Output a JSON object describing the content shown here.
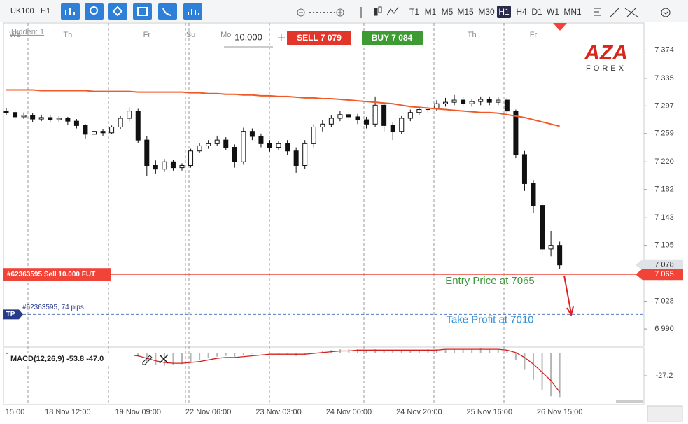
{
  "toolbar": {
    "symbol": "UK100",
    "timeframe": "H1",
    "periods": [
      "T1",
      "M1",
      "M5",
      "M15",
      "M30",
      "H1",
      "H4",
      "D1",
      "W1",
      "MN1"
    ],
    "active_period": 5
  },
  "order_panel": {
    "volume": "10.000",
    "sell": "SELL 7 079",
    "buy": "BUY 7 084"
  },
  "hidden": "Hidden: 1",
  "logo": {
    "brand": "AZA",
    "sub": "FOREX"
  },
  "chart_data": [
    {
      "type": "candlestick",
      "categories": [
        null,
        "15:00",
        null,
        null,
        null,
        null,
        null,
        "18 Nov 12:00",
        null,
        null,
        null,
        null,
        null,
        null,
        null,
        "19 Nov 09:00",
        null,
        null,
        null,
        null,
        null,
        null,
        null,
        "22 Nov 06:00",
        null,
        null,
        null,
        null,
        null,
        null,
        null,
        "23 Nov 03:00",
        null,
        null,
        null,
        null,
        null,
        null,
        null,
        "24 Nov 00:00",
        null,
        null,
        null,
        null,
        null,
        null,
        null,
        "24 Nov 20:00",
        null,
        null,
        null,
        null,
        null,
        null,
        null,
        "25 Nov 16:00",
        null,
        null,
        null,
        null,
        null,
        null,
        null,
        "26 Nov 15:00"
      ],
      "day_labels": [
        null,
        "We",
        null,
        null,
        null,
        null,
        null,
        "Th",
        null,
        null,
        null,
        null,
        null,
        null,
        null,
        null,
        "Fr",
        null,
        null,
        null,
        null,
        "Su",
        null,
        null,
        null,
        "Mo",
        null,
        null,
        null,
        null,
        null,
        null,
        null,
        null,
        null,
        null,
        null,
        null,
        null,
        null,
        null,
        null,
        null,
        null,
        null,
        null,
        null,
        null,
        null,
        null,
        null,
        null,
        null,
        "Th",
        null,
        null,
        null,
        null,
        null,
        null,
        "Fr",
        null,
        null,
        null
      ],
      "open": [
        7290,
        7288,
        7282,
        7284,
        7279,
        7281,
        7278,
        7280,
        7276,
        7270,
        7258,
        7262,
        7260,
        7268,
        7280,
        7290,
        7250,
        7215,
        7210,
        7220,
        7212,
        7215,
        7235,
        7242,
        7245,
        7250,
        7240,
        7220,
        7262,
        7255,
        7245,
        7240,
        7245,
        7235,
        7215,
        7245,
        7268,
        7272,
        7280,
        7285,
        7282,
        7278,
        7272,
        7298,
        7270,
        7262,
        7280,
        7288,
        7292,
        7294,
        7300,
        7302,
        7305,
        7300,
        7303,
        7306,
        7302,
        7305,
        7290,
        7230,
        7190,
        7160,
        7100,
        7105
      ],
      "high": [
        7294,
        7292,
        7288,
        7287,
        7285,
        7284,
        7283,
        7282,
        7279,
        7272,
        7266,
        7265,
        7270,
        7283,
        7295,
        7293,
        7255,
        7222,
        7224,
        7223,
        7218,
        7238,
        7246,
        7250,
        7256,
        7254,
        7244,
        7267,
        7266,
        7259,
        7250,
        7249,
        7250,
        7240,
        7250,
        7272,
        7278,
        7284,
        7290,
        7288,
        7286,
        7282,
        7310,
        7302,
        7274,
        7283,
        7292,
        7296,
        7298,
        7305,
        7308,
        7312,
        7309,
        7307,
        7310,
        7310,
        7309,
        7308,
        7292,
        7235,
        7195,
        7165,
        7125,
        7110
      ],
      "low": [
        7284,
        7278,
        7279,
        7275,
        7276,
        7274,
        7275,
        7271,
        7266,
        7252,
        7255,
        7256,
        7258,
        7265,
        7276,
        7246,
        7200,
        7204,
        7206,
        7208,
        7208,
        7212,
        7232,
        7238,
        7242,
        7236,
        7212,
        7216,
        7250,
        7240,
        7234,
        7236,
        7230,
        7205,
        7210,
        7240,
        7262,
        7268,
        7276,
        7278,
        7272,
        7266,
        7268,
        7262,
        7250,
        7258,
        7276,
        7284,
        7288,
        7290,
        7296,
        7298,
        7296,
        7296,
        7298,
        7298,
        7298,
        7284,
        7225,
        7180,
        7150,
        7092,
        7090,
        7072
      ],
      "close": [
        7288,
        7282,
        7284,
        7279,
        7281,
        7278,
        7280,
        7276,
        7270,
        7258,
        7262,
        7260,
        7268,
        7280,
        7290,
        7250,
        7215,
        7210,
        7220,
        7212,
        7215,
        7235,
        7242,
        7245,
        7250,
        7240,
        7220,
        7262,
        7255,
        7245,
        7240,
        7245,
        7235,
        7215,
        7245,
        7268,
        7272,
        7280,
        7285,
        7282,
        7278,
        7272,
        7298,
        7270,
        7262,
        7280,
        7288,
        7292,
        7294,
        7300,
        7302,
        7305,
        7300,
        7303,
        7306,
        7302,
        7305,
        7290,
        7230,
        7190,
        7160,
        7100,
        7105,
        7078
      ],
      "up_color": "#ffffff",
      "down_color": "#111111",
      "ma": {
        "color": "#f05a28",
        "values": [
          7319,
          7319,
          7319,
          7319,
          7318,
          7318,
          7318,
          7318,
          7318,
          7318,
          7317,
          7317,
          7317,
          7317,
          7317,
          7316,
          7316,
          7316,
          7316,
          7316,
          7316,
          7315,
          7315,
          7314,
          7314,
          7313,
          7313,
          7312,
          7312,
          7311,
          7311,
          7310,
          7310,
          7309,
          7308,
          7308,
          7307,
          7307,
          7306,
          7305,
          7304,
          7303,
          7302,
          7301,
          7300,
          7298,
          7296,
          7295,
          7294,
          7293,
          7292,
          7291,
          7290,
          7289,
          7288,
          7288,
          7287,
          7285,
          7283,
          7281,
          7278,
          7275,
          7272,
          7269
        ]
      },
      "ylim": [
        6966,
        7411
      ],
      "yticks": [
        {
          "value": 7374,
          "label": "7 374"
        },
        {
          "value": 7335,
          "label": "7 335"
        },
        {
          "value": 7297,
          "label": "7 297"
        },
        {
          "value": 7259,
          "label": "7 259"
        },
        {
          "value": 7220,
          "label": "7 220"
        },
        {
          "value": 7182,
          "label": "7 182"
        },
        {
          "value": 7143,
          "label": "7 143"
        },
        {
          "value": 7105,
          "label": "7 105"
        },
        {
          "value": 7028,
          "label": "7 028"
        },
        {
          "value": 6990,
          "label": "6 990"
        }
      ],
      "price_tags": [
        {
          "value": 7078,
          "label": "7 078",
          "color": "#dfe3e8"
        },
        {
          "value": 7065,
          "label": "7 065",
          "color": "#f04438"
        }
      ],
      "levels": [
        {
          "label": "Entry Price at 7065",
          "value": 7065,
          "color": "#3c9a3c"
        },
        {
          "label": "Take Profit at 7010",
          "value": 7010,
          "color": "#2f8fd8"
        }
      ],
      "order_tag": "#62363595 Sell 10.000 FUT",
      "tp_tag": "TP",
      "tp_note": "#62363595, 74 pips"
    },
    {
      "type": "macd",
      "title": "MACD(12,26,9) -53.8 -47.0",
      "histogram": [
        1,
        1,
        0,
        0,
        -1,
        -1,
        -2,
        -2,
        -3,
        -4,
        -4,
        -3,
        -2,
        -1,
        0,
        -4,
        -10,
        -14,
        -15,
        -14,
        -13,
        -11,
        -8,
        -6,
        -4,
        -3,
        -4,
        -2,
        0,
        1,
        1,
        0,
        -1,
        -3,
        -2,
        1,
        3,
        4,
        5,
        5,
        5,
        4,
        5,
        4,
        3,
        3,
        4,
        4,
        5,
        5,
        5,
        5,
        5,
        5,
        6,
        5,
        5,
        3,
        -8,
        -20,
        -32,
        -45,
        -52,
        -53.8
      ],
      "signal": [
        0,
        0,
        0,
        0,
        -1,
        -1,
        -1,
        -2,
        -2,
        -3,
        -3,
        -3,
        -3,
        -2,
        -2,
        -3,
        -6,
        -9,
        -11,
        -12,
        -12,
        -11,
        -10,
        -8,
        -6,
        -5,
        -5,
        -4,
        -3,
        -2,
        -1,
        -1,
        -1,
        -1,
        -1,
        0,
        1,
        2,
        3,
        3,
        4,
        4,
        4,
        4,
        4,
        4,
        4,
        4,
        4,
        4,
        5,
        5,
        5,
        5,
        5,
        5,
        5,
        4,
        1,
        -5,
        -13,
        -23,
        -33,
        -47.0
      ],
      "histogram_color": "#b5b5b5",
      "signal_color": "#d62020",
      "ylim": [
        -62,
        6.8
      ],
      "yticks": [
        -27.2
      ]
    }
  ]
}
